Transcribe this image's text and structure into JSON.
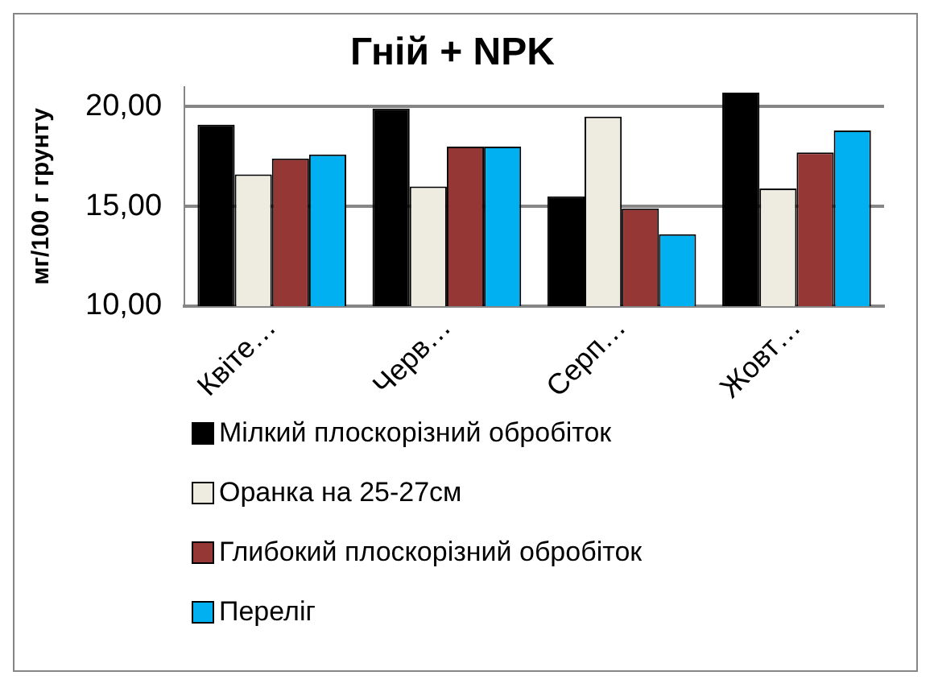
{
  "chart_data": {
    "type": "bar",
    "title": "Гній + NPK",
    "ylabel": "мг/100 г грунту",
    "categories": [
      "Квіте…",
      "Черв…",
      "Серп…",
      "Жовт…"
    ],
    "series": [
      {
        "name": "Мілкий плоскорізний обробіток",
        "color": "#000000",
        "values": [
          19.1,
          19.9,
          15.5,
          20.7
        ]
      },
      {
        "name": "Оранка на 25-27см",
        "color": "#eeece1",
        "values": [
          16.6,
          16.0,
          19.5,
          15.9
        ]
      },
      {
        "name": "Глибокий плоскорізний обробіток",
        "color": "#953735",
        "values": [
          17.4,
          18.0,
          14.9,
          17.7
        ]
      },
      {
        "name": "Переліг",
        "color": "#00b0f0",
        "values": [
          17.6,
          18.0,
          13.6,
          18.8
        ]
      }
    ],
    "ylim": [
      10,
      21
    ],
    "yticks": [
      {
        "value": 10,
        "label": "10,00"
      },
      {
        "value": 15,
        "label": "15,00"
      },
      {
        "value": 20,
        "label": "20,00"
      }
    ],
    "grid": "y",
    "legend": "bottom"
  }
}
